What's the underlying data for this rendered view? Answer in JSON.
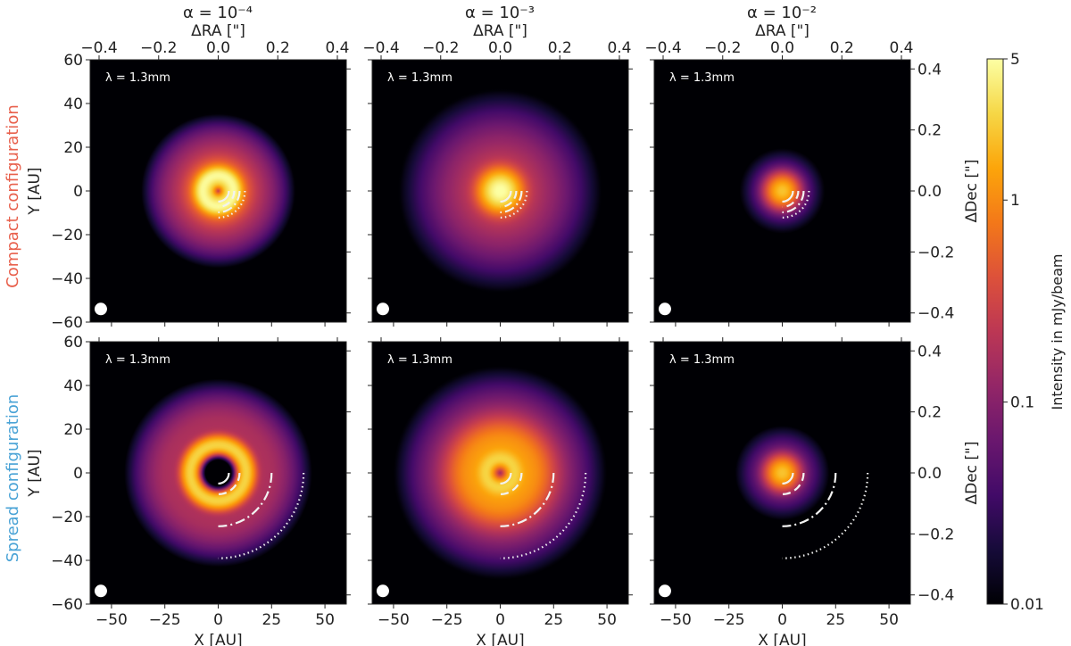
{
  "chart_data": {
    "type": "heatmap",
    "colormap": "inferno",
    "columns": [
      {
        "title": "α = 10⁻⁴",
        "alpha": 0.0001
      },
      {
        "title": "α = 10⁻³",
        "alpha": 0.001
      },
      {
        "title": "α = 10⁻²",
        "alpha": 0.01
      }
    ],
    "rows": [
      {
        "label": "Compact configuration",
        "color": "#e8604c"
      },
      {
        "label": "Spread configuration",
        "color": "#4aa3d6"
      }
    ],
    "panel_label": "λ = 1.3mm",
    "x_axis": {
      "label": "X [AU]",
      "range": [
        -60,
        60
      ],
      "ticks": [
        -50,
        -25,
        0,
        25,
        50
      ],
      "tick_labels": [
        "−50",
        "−25",
        "0",
        "25",
        "50"
      ]
    },
    "y_axis": {
      "label": "Y [AU]",
      "range": [
        -60,
        60
      ],
      "ticks": [
        -60,
        -40,
        -20,
        0,
        20,
        40,
        60
      ],
      "tick_labels": [
        "−60",
        "−40",
        "−20",
        "0",
        "20",
        "40",
        "60"
      ]
    },
    "top_axis": {
      "label": "ΔRA [\"]",
      "range": [
        -0.43,
        0.43
      ],
      "ticks": [
        -0.4,
        -0.2,
        0.0,
        0.2,
        0.4
      ],
      "tick_labels": [
        "−0.4",
        "−0.2",
        "0.0",
        "0.2",
        "0.4"
      ]
    },
    "right_axis": {
      "label": "ΔDec [\"]",
      "range": [
        -0.43,
        0.43
      ],
      "ticks": [
        -0.4,
        -0.2,
        0.0,
        0.2,
        0.4
      ],
      "tick_labels": [
        "−0.4",
        "−0.2",
        "0.0",
        "0.2",
        "0.4"
      ]
    },
    "colorbar": {
      "label": "Intensity in mJy/beam",
      "scale": "log",
      "range": [
        0.01,
        5
      ],
      "ticks": [
        0.01,
        0.1,
        1,
        5
      ],
      "tick_labels": [
        "0.01",
        "0.1",
        "1",
        "5"
      ]
    },
    "beam_position_au": [
      -55,
      -54
    ],
    "planet_arcs": {
      "compact": {
        "radii_au": [
          5,
          7.5,
          10,
          12.5
        ],
        "styles": [
          "solid",
          "dashed",
          "dashdot",
          "dotted"
        ]
      },
      "spread": {
        "radii_au": [
          5,
          10,
          25,
          40
        ],
        "styles": [
          "solid",
          "dashed",
          "dashdot",
          "dotted"
        ]
      }
    },
    "panels": [
      {
        "row": 0,
        "col": 0,
        "peak": 3.0,
        "components": [
          {
            "r0": 0,
            "w": 9.6,
            "a": 1
          }
        ],
        "ring": {
          "r0": 7.5,
          "w": 3,
          "a": 1
        },
        "halo": {
          "r0": 18,
          "w": 11,
          "a": 0.05
        },
        "hole": {
          "r": 2.2,
          "f": 0.01
        }
      },
      {
        "row": 0,
        "col": 1,
        "peak": 5.0,
        "components": [
          {
            "r0": 0,
            "w": 7,
            "a": 1
          },
          {
            "r0": 0,
            "w": 26,
            "a": 0.055
          }
        ]
      },
      {
        "row": 0,
        "col": 2,
        "peak": 2.0,
        "components": [
          {
            "r0": 0,
            "w": 5.5,
            "a": 1
          },
          {
            "r0": 0,
            "w": 13,
            "a": 0.05
          }
        ]
      },
      {
        "row": 1,
        "col": 0,
        "peak": 2.5,
        "components": [
          {
            "r0": 13,
            "w": 3.5,
            "a": 1
          },
          {
            "r0": 22,
            "w": 13,
            "a": 0.07
          }
        ],
        "hole": {
          "r": 8.5,
          "f": 0.005
        }
      },
      {
        "row": 1,
        "col": 1,
        "peak": 2.0,
        "components": [
          {
            "r0": 6,
            "w": 4,
            "a": 1
          },
          {
            "r0": 13,
            "w": 9,
            "a": 0.5
          },
          {
            "r0": 15,
            "w": 20,
            "a": 0.1
          }
        ],
        "dip": {
          "r": 4,
          "f": 0.35
        }
      },
      {
        "row": 1,
        "col": 2,
        "peak": 2.0,
        "components": [
          {
            "r0": 0,
            "w": 5.5,
            "a": 1
          },
          {
            "r0": 0,
            "w": 14,
            "a": 0.06
          }
        ]
      }
    ]
  }
}
